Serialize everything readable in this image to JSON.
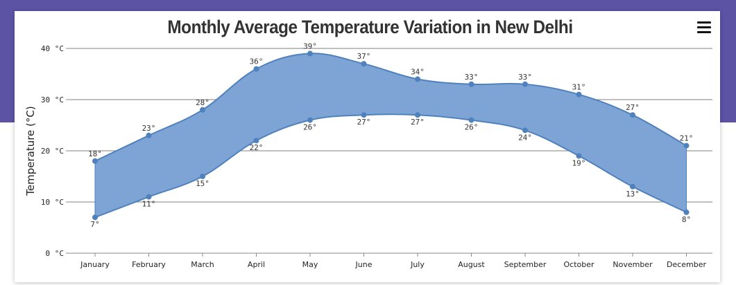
{
  "page": {
    "colors": {
      "header_band": "#5c53a5",
      "series_fill": "#7da4d4",
      "series_line": "#4f81bd",
      "gridline": "#555555"
    },
    "menu_icon": "hamburger-menu-icon"
  },
  "chart_data": {
    "type": "area",
    "subtype": "range-spline-area",
    "title": "Monthly Average Temperature Variation in New Delhi",
    "xlabel": "",
    "ylabel": "Temperature (°C)",
    "ylim": [
      0,
      40
    ],
    "yticks": [
      "0 °C",
      "10 °C",
      "20 °C",
      "30 °C",
      "40 °C"
    ],
    "grid": true,
    "legend": "none",
    "categories": [
      "January",
      "February",
      "March",
      "April",
      "May",
      "June",
      "July",
      "August",
      "September",
      "October",
      "November",
      "December"
    ],
    "low": [
      7,
      11,
      15,
      22,
      26,
      27,
      27,
      26,
      24,
      19,
      13,
      8
    ],
    "high": [
      18,
      23,
      28,
      36,
      39,
      37,
      34,
      33,
      33,
      31,
      27,
      21
    ],
    "low_labels": [
      "7°",
      "11°",
      "15°",
      "22°",
      "26°",
      "27°",
      "27°",
      "26°",
      "24°",
      "19°",
      "13°",
      "8°"
    ],
    "high_labels": [
      "18°",
      "23°",
      "28°",
      "36°",
      "39°",
      "37°",
      "34°",
      "33°",
      "33°",
      "31°",
      "27°",
      "21°"
    ]
  }
}
